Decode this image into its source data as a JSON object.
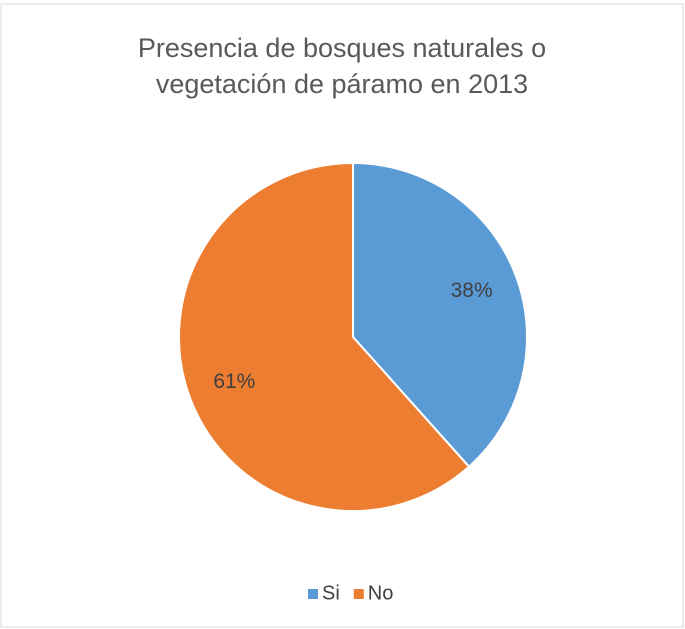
{
  "chart_data": {
    "type": "pie",
    "title": "Presencia de bosques naturales o vegetación de páramo en 2013",
    "categories": [
      "Si",
      "No"
    ],
    "values": [
      38,
      61
    ],
    "value_labels": [
      "38%",
      "61%"
    ],
    "colors": [
      "#5b9bd5",
      "#ed7d31"
    ],
    "legend": "bottom"
  }
}
